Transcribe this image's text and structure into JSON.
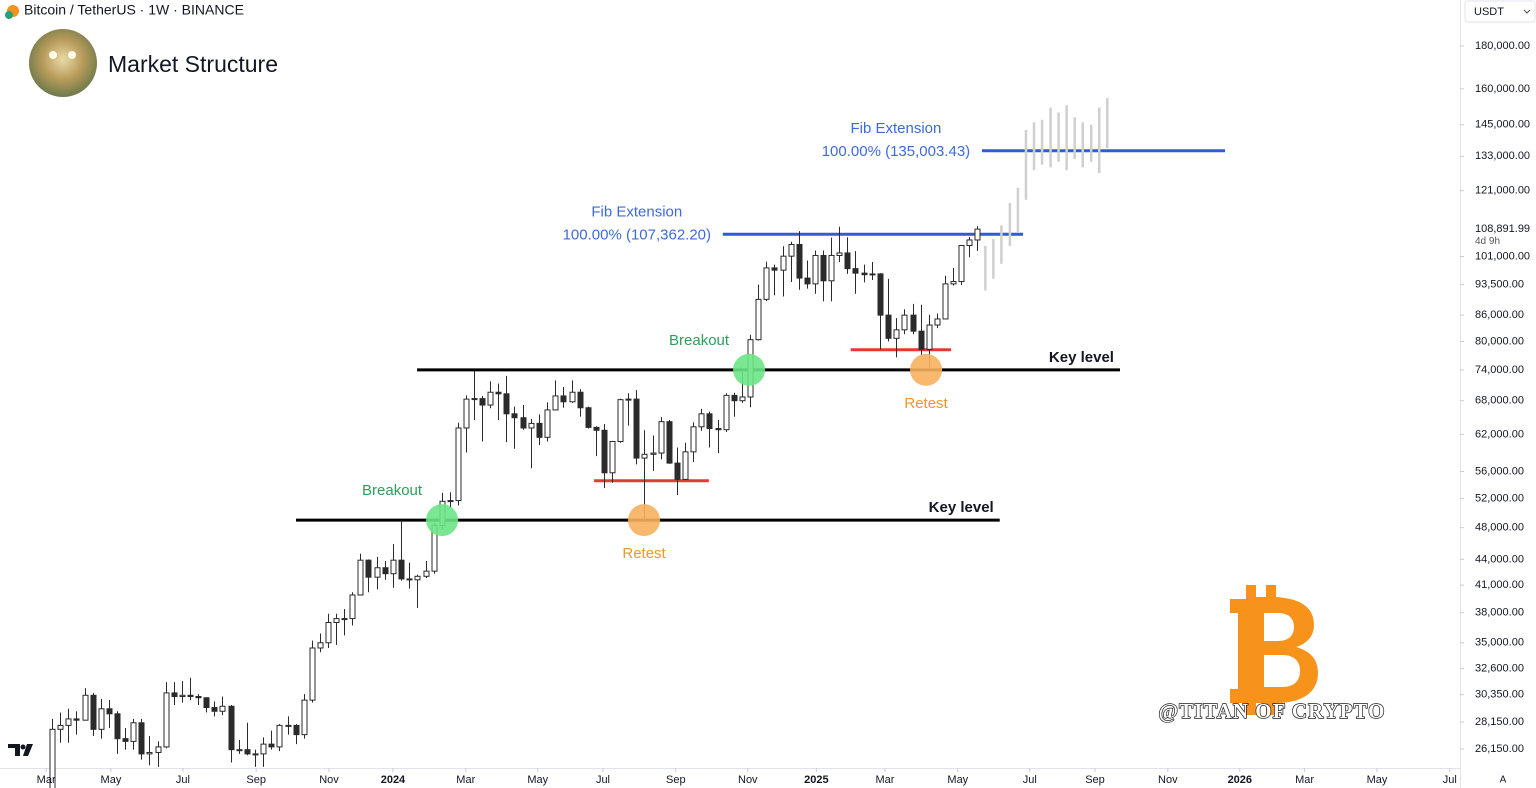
{
  "header": {
    "symbol": "Bitcoin / TetherUS · 1W · BINANCE",
    "title": "Market Structure",
    "currency": "USDT",
    "watermark": "@TITAN OF CRYPTO",
    "scale_button": "A"
  },
  "chart_data": {
    "type": "candlestick",
    "log_scale": true,
    "xlim": [
      2023.072,
      2026.52
    ],
    "ylim": [
      24820,
      204200
    ],
    "xticks": [
      {
        "value": 2023.181,
        "label": "Mar"
      },
      {
        "value": 2023.334,
        "label": "May"
      },
      {
        "value": 2023.504,
        "label": "Jul"
      },
      {
        "value": 2023.677,
        "label": "Sep"
      },
      {
        "value": 2023.849,
        "label": "Nov"
      },
      2024,
      {
        "value": 2024.172,
        "label": "Mar"
      },
      {
        "value": 2024.342,
        "label": "May"
      },
      {
        "value": 2024.496,
        "label": "Jul"
      },
      {
        "value": 2024.668,
        "label": "Sep"
      },
      {
        "value": 2024.838,
        "label": "Nov"
      },
      2025,
      {
        "value": 2025.162,
        "label": "Mar"
      },
      {
        "value": 2025.334,
        "label": "May"
      },
      {
        "value": 2025.504,
        "label": "Jul"
      },
      {
        "value": 2025.658,
        "label": "Sep"
      },
      {
        "value": 2025.83,
        "label": "Nov"
      },
      2026,
      {
        "value": 2026.153,
        "label": "Mar"
      },
      {
        "value": 2026.324,
        "label": "May"
      },
      {
        "value": 2026.496,
        "label": "Jul"
      }
    ],
    "yticks": [
      {
        "value": 180000,
        "label": "180,000.00"
      },
      {
        "value": 160000,
        "label": "160,000.00"
      },
      {
        "value": 145000,
        "label": "145,000.00"
      },
      {
        "value": 133000,
        "label": "133,000.00"
      },
      {
        "value": 121000,
        "label": "121,000.00"
      },
      {
        "value": 101000,
        "label": "101,000.00"
      },
      {
        "value": 93500,
        "label": "93,500.00"
      },
      {
        "value": 86000,
        "label": "86,000.00"
      },
      {
        "value": 80000,
        "label": "80,000.00"
      },
      {
        "value": 74000,
        "label": "74,000.00"
      },
      {
        "value": 68000,
        "label": "68,000.00"
      },
      {
        "value": 62000,
        "label": "62,000.00"
      },
      {
        "value": 56000,
        "label": "56,000.00"
      },
      {
        "value": 52000,
        "label": "52,000.00"
      },
      {
        "value": 48000,
        "label": "48,000.00"
      },
      {
        "value": 44000,
        "label": "44,000.00"
      },
      {
        "value": 41000,
        "label": "41,000.00"
      },
      {
        "value": 38000,
        "label": "38,000.00"
      },
      {
        "value": 35000,
        "label": "35,000.00"
      },
      {
        "value": 32600,
        "label": "32,600.00"
      },
      {
        "value": 30350,
        "label": "30,350.00"
      },
      {
        "value": 28150,
        "label": "28,150.00"
      },
      {
        "value": 26150,
        "label": "26,150.00"
      }
    ],
    "up_color": "#ffffff",
    "down_color": "#2b2b2b",
    "wick_color": "#2b2b2b",
    "x": [
      2023.195,
      2023.214,
      2023.233,
      2023.252,
      2023.272,
      2023.291,
      2023.31,
      2023.329,
      2023.348,
      2023.367,
      2023.387,
      2023.406,
      2023.425,
      2023.444,
      2023.463,
      2023.482,
      2023.502,
      2023.521,
      2023.54,
      2023.559,
      2023.578,
      2023.597,
      2023.617,
      2023.636,
      2023.655,
      2023.674,
      2023.693,
      2023.712,
      2023.732,
      2023.751,
      2023.77,
      2023.789,
      2023.808,
      2023.827,
      2023.847,
      2023.866,
      2023.885,
      2023.904,
      2023.923,
      2023.942,
      2023.962,
      2023.981,
      2024.0,
      2024.019,
      2024.038,
      2024.057,
      2024.077,
      2024.096,
      2024.115,
      2024.134,
      2024.153,
      2024.172,
      2024.192,
      2024.211,
      2024.23,
      2024.249,
      2024.268,
      2024.287,
      2024.307,
      2024.326,
      2024.345,
      2024.364,
      2024.383,
      2024.402,
      2024.422,
      2024.441,
      2024.46,
      2024.479,
      2024.498,
      2024.517,
      2024.537,
      2024.556,
      2024.575,
      2024.594,
      2024.613,
      2024.632,
      2024.652,
      2024.671,
      2024.69,
      2024.709,
      2024.728,
      2024.747,
      2024.767,
      2024.786,
      2024.805,
      2024.824,
      2024.843,
      2024.862,
      2024.882,
      2024.901,
      2024.92,
      2024.939,
      2024.958,
      2024.977,
      2024.997,
      2025.016,
      2025.035,
      2025.054,
      2025.073,
      2025.092,
      2025.112,
      2025.131,
      2025.15,
      2025.169,
      2025.188,
      2025.207,
      2025.227,
      2025.246,
      2025.265,
      2025.284,
      2025.303,
      2025.322,
      2025.342,
      2025.361,
      2025.38
    ],
    "open": [
      22000,
      27600,
      27900,
      28400,
      28300,
      30300,
      27600,
      29200,
      28800,
      26900,
      26700,
      28100,
      25800,
      25900,
      26300,
      30500,
      30200,
      30300,
      30200,
      30100,
      29300,
      29000,
      29400,
      26100,
      26100,
      25800,
      25800,
      26500,
      26300,
      27900,
      27900,
      27200,
      29900,
      34500,
      35000,
      37000,
      37400,
      37400,
      39900,
      43900,
      41900,
      43000,
      42300,
      43900,
      41700,
      41600,
      42000,
      42600,
      48300,
      51600,
      51700,
      63100,
      68300,
      68400,
      67200,
      69600,
      69300,
      65600,
      64900,
      63100,
      63900,
      61500,
      66300,
      68900,
      67800,
      69600,
      66700,
      63200,
      62700,
      55800,
      60800,
      68200,
      68300,
      58100,
      58700,
      58900,
      64200,
      57300,
      54800,
      59100,
      63300,
      65600,
      63000,
      62800,
      69000,
      68000,
      68700,
      80400,
      89800,
      97900,
      97300,
      101100,
      104400,
      95200,
      93700,
      101300,
      94500,
      101300,
      102000,
      97700,
      96500,
      96100,
      96300,
      86000,
      80700,
      82600,
      86000,
      82300,
      78300,
      83700,
      85100,
      93700,
      94300,
      104100,
      105700
    ],
    "high": [
      28400,
      28900,
      29200,
      29000,
      30900,
      30500,
      30000,
      29900,
      29000,
      27700,
      28400,
      28400,
      27100,
      26700,
      31400,
      31400,
      31500,
      31800,
      30400,
      30100,
      29800,
      30200,
      29500,
      26800,
      28100,
      26100,
      27000,
      27500,
      28000,
      28600,
      28000,
      30400,
      35200,
      35900,
      37900,
      37900,
      38400,
      40200,
      44700,
      44000,
      44300,
      43800,
      45900,
      49000,
      43600,
      42200,
      43800,
      48600,
      52800,
      52900,
      64000,
      69000,
      73800,
      68900,
      71700,
      71300,
      72800,
      66900,
      67200,
      64700,
      65500,
      67700,
      71900,
      70600,
      71900,
      70200,
      66900,
      63400,
      63800,
      60900,
      68400,
      69400,
      70000,
      62700,
      61800,
      65000,
      64500,
      59800,
      60600,
      64100,
      66500,
      66000,
      64500,
      69400,
      69500,
      73600,
      81500,
      93500,
      99600,
      98800,
      103900,
      105200,
      108300,
      99900,
      102700,
      102700,
      106400,
      109600,
      106500,
      102500,
      98800,
      99500,
      96500,
      95000,
      85300,
      87400,
      88700,
      88500,
      86100,
      86400,
      95800,
      97900,
      104300,
      106600,
      109800
    ],
    "low": [
      21900,
      26600,
      26600,
      27200,
      28300,
      27100,
      26900,
      27700,
      25800,
      26100,
      26100,
      25400,
      25000,
      24900,
      26200,
      29500,
      29700,
      29900,
      29500,
      28900,
      28600,
      28700,
      25200,
      25800,
      25700,
      24900,
      24900,
      26100,
      26000,
      27200,
      26500,
      26900,
      29700,
      34100,
      34500,
      34800,
      35700,
      36700,
      39900,
      40200,
      40500,
      41600,
      40700,
      41500,
      40600,
      38500,
      41800,
      42300,
      47700,
      50600,
      51000,
      59000,
      64500,
      60800,
      66600,
      64500,
      60700,
      59600,
      62800,
      56500,
      60200,
      60800,
      66200,
      66700,
      67600,
      65100,
      63000,
      58400,
      53500,
      54300,
      60600,
      63500,
      57100,
      49000,
      56100,
      57900,
      57200,
      52500,
      54700,
      57500,
      62600,
      59800,
      58900,
      62400,
      65100,
      67600,
      66800,
      80200,
      89400,
      90800,
      90500,
      94200,
      92200,
      92500,
      91200,
      89300,
      89300,
      99500,
      96300,
      91200,
      94100,
      94700,
      78300,
      80000,
      76600,
      81600,
      81600,
      77100,
      74400,
      83000,
      85100,
      93300,
      93400,
      100800,
      102600
    ],
    "close": [
      27600,
      27900,
      28400,
      28300,
      30300,
      27600,
      29200,
      28800,
      26900,
      26700,
      28100,
      25800,
      25900,
      26300,
      30500,
      30200,
      30300,
      30200,
      30100,
      29300,
      29000,
      29400,
      26100,
      26100,
      25800,
      25800,
      26500,
      26300,
      27900,
      27900,
      27200,
      29900,
      34500,
      35000,
      37000,
      37400,
      37400,
      39900,
      43900,
      41900,
      43000,
      42300,
      43900,
      41700,
      41600,
      42000,
      42600,
      48300,
      51600,
      51700,
      63100,
      68300,
      68400,
      67200,
      69600,
      69300,
      65600,
      64900,
      63100,
      63900,
      61500,
      66300,
      68900,
      67800,
      69600,
      66700,
      63200,
      62700,
      55800,
      60800,
      68200,
      68300,
      58100,
      58700,
      58900,
      64200,
      57300,
      54800,
      59100,
      63300,
      65600,
      63000,
      62800,
      69000,
      68000,
      68700,
      80400,
      89800,
      97900,
      97300,
      101100,
      104400,
      95200,
      93700,
      101300,
      94500,
      101300,
      102000,
      97700,
      96500,
      96100,
      96300,
      86000,
      80700,
      82600,
      86000,
      82300,
      78300,
      83700,
      85100,
      93700,
      94300,
      104100,
      105700,
      108891.99
    ],
    "last_price": {
      "value": 108891.99,
      "label": "108,891.99",
      "countdown": "4d 9h"
    },
    "projection": {
      "color": "#cfcfcf",
      "x": [
        2025.399,
        2025.418,
        2025.437,
        2025.457,
        2025.476,
        2025.495,
        2025.514,
        2025.533,
        2025.553,
        2025.572,
        2025.591,
        2025.61,
        2025.629,
        2025.649,
        2025.668,
        2025.687
      ],
      "low": [
        92000,
        95000,
        99000,
        104000,
        108000,
        118000,
        128000,
        130000,
        129000,
        131000,
        128000,
        132000,
        129000,
        131000,
        127000,
        136000
      ],
      "high": [
        104000,
        106000,
        110000,
        117000,
        122000,
        143000,
        146000,
        147000,
        152000,
        150000,
        153000,
        148000,
        146000,
        145000,
        152000,
        156000
      ]
    },
    "levels": [
      {
        "label": "Key level",
        "value": 74000,
        "from": 2024.057,
        "to": 2025.717,
        "color": "#000000"
      },
      {
        "label": "Key level",
        "value": 49000,
        "from": 2023.771,
        "to": 2025.433,
        "color": "#000000"
      }
    ],
    "fib": [
      {
        "title": "Fib Extension",
        "label": "100.00% (107,362.20)",
        "value": 107362.2,
        "from": 2024.779,
        "to": 2025.488,
        "color": "#2f5bd6"
      },
      {
        "title": "Fib Extension",
        "label": "100.00% (135,003.43)",
        "value": 135003.43,
        "from": 2025.391,
        "to": 2025.965,
        "color": "#2f5bd6"
      }
    ],
    "supports": [
      {
        "value": 54600,
        "from": 2024.475,
        "to": 2024.746,
        "color": "#e53935"
      },
      {
        "value": 78200,
        "from": 2025.081,
        "to": 2025.318,
        "color": "#e53935"
      }
    ],
    "markers": [
      {
        "label": "Breakout",
        "x": 2024.116,
        "value": 49000,
        "color": "#6be586",
        "text_color": "#2e9e5b",
        "label_position": "above"
      },
      {
        "label": "Retest",
        "x": 2024.593,
        "value": 49000,
        "color": "#f7b05e",
        "text_color": "#f0962a",
        "label_position": "below"
      },
      {
        "label": "Breakout",
        "x": 2024.841,
        "value": 74000,
        "color": "#6be586",
        "text_color": "#2e9e5b",
        "label_position": "above"
      },
      {
        "label": "Retest",
        "x": 2025.259,
        "value": 74000,
        "color": "#f7b05e",
        "text_color": "#f0962a",
        "label_position": "below"
      }
    ]
  }
}
